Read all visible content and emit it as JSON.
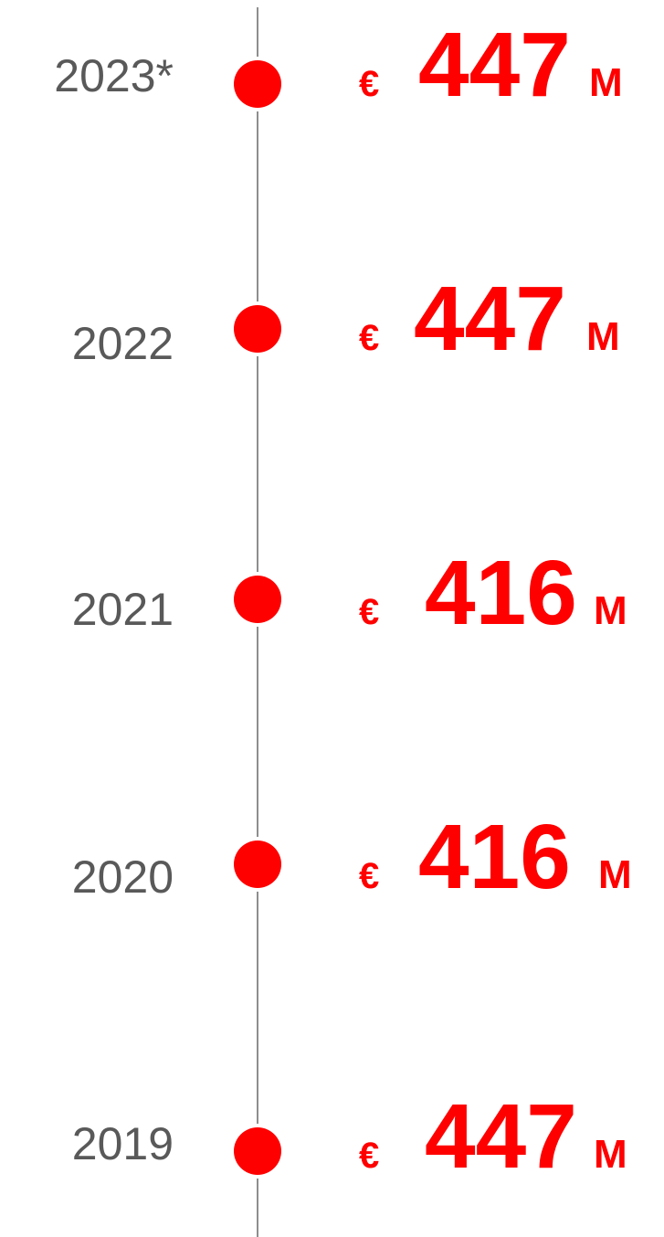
{
  "items": [
    {
      "year": "2023*",
      "currency": "€",
      "amount": 447,
      "unit": "M"
    },
    {
      "year": "2022",
      "currency": "€",
      "amount": 447,
      "unit": "M"
    },
    {
      "year": "2021",
      "currency": "€",
      "amount": 416,
      "unit": "M"
    },
    {
      "year": "2020",
      "currency": "€",
      "amount": 416,
      "unit": "M"
    },
    {
      "year": "2019",
      "currency": "€",
      "amount": 447,
      "unit": "M"
    }
  ]
}
